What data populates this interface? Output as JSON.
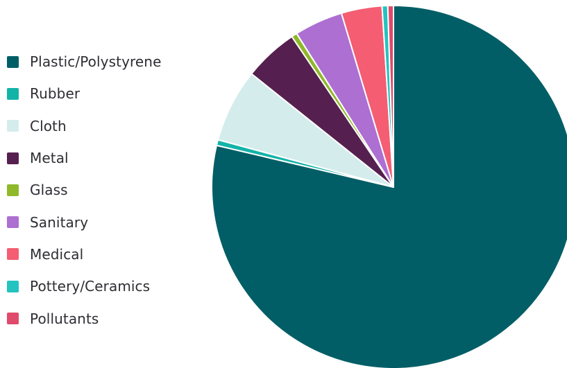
{
  "chart_data": {
    "type": "pie",
    "title": "",
    "legend_position": "left",
    "categories": [
      "Plastic/Polystyrene",
      "Rubber",
      "Cloth",
      "Metal",
      "Glass",
      "Sanitary",
      "Medical",
      "Pottery/Ceramics",
      "Pollutants"
    ],
    "values": [
      78.3,
      0.5,
      6.5,
      4.8,
      0.5,
      4.3,
      3.6,
      0.5,
      0.5
    ],
    "colors": [
      "#025e66",
      "#14b3a8",
      "#d5ecec",
      "#55204f",
      "#8fb82a",
      "#ad6fd2",
      "#f45d72",
      "#23c3c0",
      "#e04a6b"
    ]
  }
}
